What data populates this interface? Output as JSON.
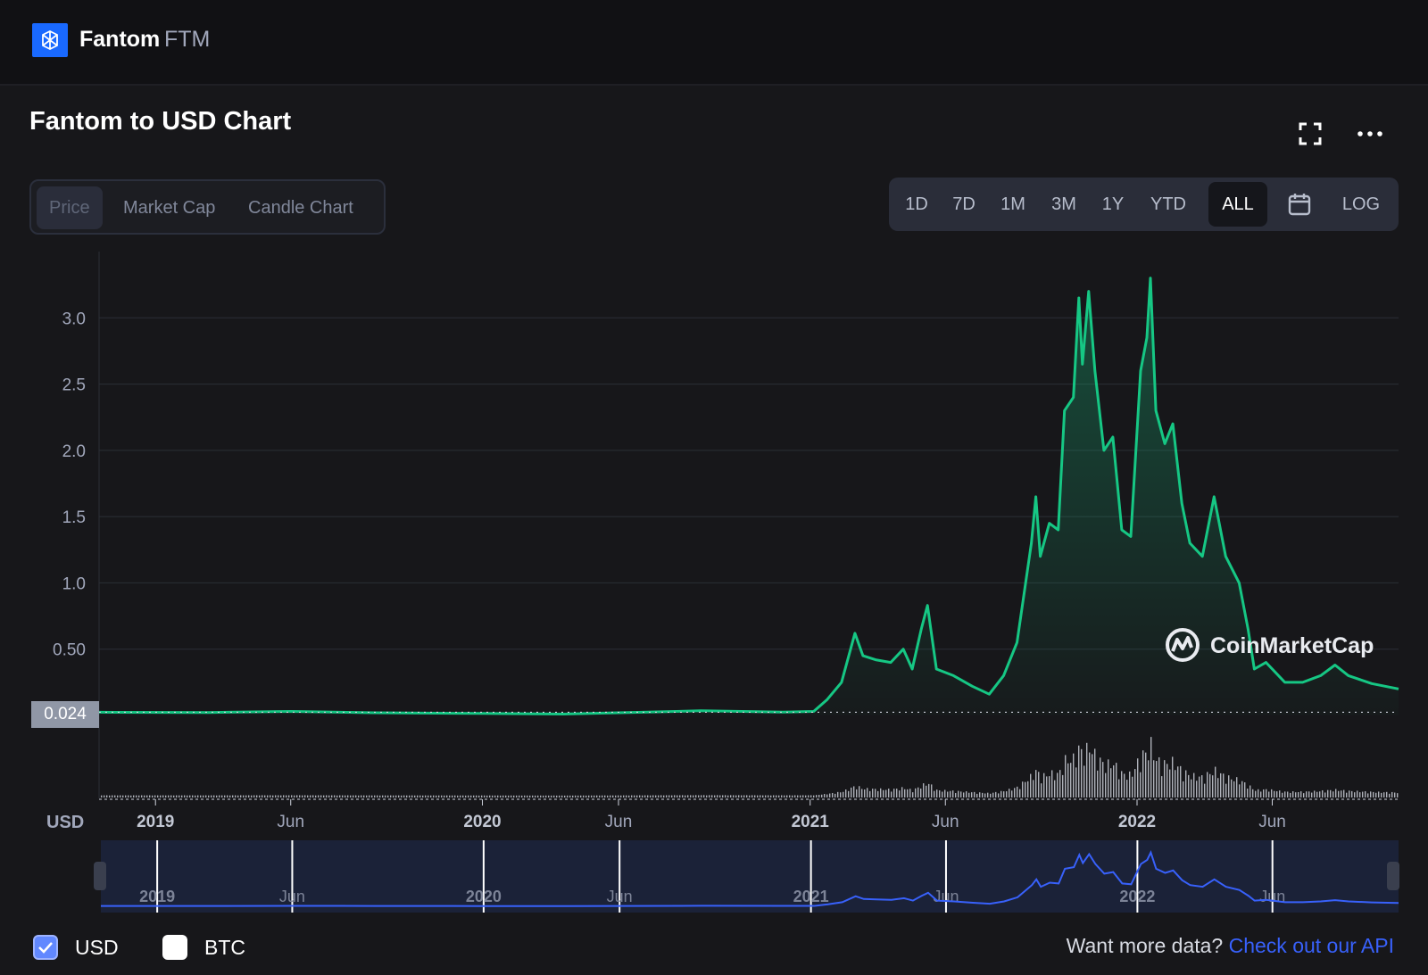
{
  "header": {
    "coin_name": "Fantom",
    "coin_symbol": "FTM"
  },
  "title": "Fantom to USD Chart",
  "metric_tabs": [
    "Price",
    "Market Cap",
    "Candle Chart"
  ],
  "active_metric": "Price",
  "range_buttons": [
    "1D",
    "7D",
    "1M",
    "3M",
    "1Y",
    "YTD",
    "ALL"
  ],
  "active_range": "ALL",
  "log_label": "LOG",
  "current_price_label": "0.024",
  "currency_axis_label": "USD",
  "watermark": "CoinMarketCap",
  "legend": {
    "usd_label": "USD",
    "usd_checked": true,
    "btc_label": "BTC",
    "btc_checked": false
  },
  "footer": {
    "prompt": "Want more data?",
    "link_text": "Check out our API"
  },
  "colors": {
    "line": "#16c784",
    "navigator_line": "#3861fb",
    "accent": "#3861fb"
  },
  "chart_data": {
    "type": "line",
    "y_ticks": [
      "3.0",
      "2.5",
      "2.0",
      "1.5",
      "1.0",
      "0.50"
    ],
    "y_tick_values": [
      3.0,
      2.5,
      2.0,
      1.5,
      1.0,
      0.5
    ],
    "ylim": [
      0,
      3.5
    ],
    "x_ticks": [
      {
        "label": "2019",
        "date": "2019-01-01"
      },
      {
        "label": "Jun",
        "date": "2019-06-01"
      },
      {
        "label": "2020",
        "date": "2020-01-01"
      },
      {
        "label": "Jun",
        "date": "2020-06-01"
      },
      {
        "label": "2021",
        "date": "2021-01-01"
      },
      {
        "label": "Jun",
        "date": "2021-06-01"
      },
      {
        "label": "2022",
        "date": "2022-01-01"
      },
      {
        "label": "Jun",
        "date": "2022-06-01"
      }
    ],
    "x_range": [
      "2018-10-30",
      "2022-10-20"
    ],
    "baseline_price": 0.024,
    "series": [
      {
        "values": [
          [
            "2018-10-30",
            0.024
          ],
          [
            "2019-03-01",
            0.022
          ],
          [
            "2019-06-01",
            0.03
          ],
          [
            "2019-09-01",
            0.02
          ],
          [
            "2020-01-01",
            0.015
          ],
          [
            "2020-04-01",
            0.01
          ],
          [
            "2020-06-01",
            0.02
          ],
          [
            "2020-09-01",
            0.035
          ],
          [
            "2020-12-01",
            0.025
          ],
          [
            "2021-01-05",
            0.03
          ],
          [
            "2021-01-20",
            0.12
          ],
          [
            "2021-02-05",
            0.25
          ],
          [
            "2021-02-20",
            0.62
          ],
          [
            "2021-03-01",
            0.45
          ],
          [
            "2021-03-15",
            0.42
          ],
          [
            "2021-04-01",
            0.4
          ],
          [
            "2021-04-15",
            0.5
          ],
          [
            "2021-04-25",
            0.35
          ],
          [
            "2021-05-05",
            0.65
          ],
          [
            "2021-05-12",
            0.83
          ],
          [
            "2021-05-22",
            0.35
          ],
          [
            "2021-06-10",
            0.3
          ],
          [
            "2021-07-01",
            0.22
          ],
          [
            "2021-07-20",
            0.16
          ],
          [
            "2021-08-05",
            0.3
          ],
          [
            "2021-08-20",
            0.55
          ],
          [
            "2021-09-05",
            1.3
          ],
          [
            "2021-09-10",
            1.65
          ],
          [
            "2021-09-15",
            1.2
          ],
          [
            "2021-09-25",
            1.45
          ],
          [
            "2021-10-05",
            1.4
          ],
          [
            "2021-10-12",
            2.3
          ],
          [
            "2021-10-22",
            2.4
          ],
          [
            "2021-10-28",
            3.15
          ],
          [
            "2021-11-01",
            2.65
          ],
          [
            "2021-11-08",
            3.2
          ],
          [
            "2021-11-15",
            2.6
          ],
          [
            "2021-11-25",
            2.0
          ],
          [
            "2021-12-05",
            2.1
          ],
          [
            "2021-12-15",
            1.4
          ],
          [
            "2021-12-25",
            1.35
          ],
          [
            "2022-01-05",
            2.6
          ],
          [
            "2022-01-12",
            2.85
          ],
          [
            "2022-01-16",
            3.3
          ],
          [
            "2022-01-22",
            2.3
          ],
          [
            "2022-02-01",
            2.05
          ],
          [
            "2022-02-10",
            2.2
          ],
          [
            "2022-02-20",
            1.6
          ],
          [
            "2022-03-01",
            1.3
          ],
          [
            "2022-03-15",
            1.2
          ],
          [
            "2022-03-28",
            1.65
          ],
          [
            "2022-04-10",
            1.2
          ],
          [
            "2022-04-25",
            1.0
          ],
          [
            "2022-05-05",
            0.65
          ],
          [
            "2022-05-12",
            0.35
          ],
          [
            "2022-05-25",
            0.4
          ],
          [
            "2022-06-15",
            0.25
          ],
          [
            "2022-07-05",
            0.25
          ],
          [
            "2022-07-25",
            0.3
          ],
          [
            "2022-08-10",
            0.38
          ],
          [
            "2022-08-25",
            0.3
          ],
          [
            "2022-09-20",
            0.24
          ],
          [
            "2022-10-20",
            0.2
          ]
        ]
      }
    ],
    "legend_entries": [
      "USD",
      "BTC"
    ],
    "grid": true,
    "log_scale": false
  }
}
